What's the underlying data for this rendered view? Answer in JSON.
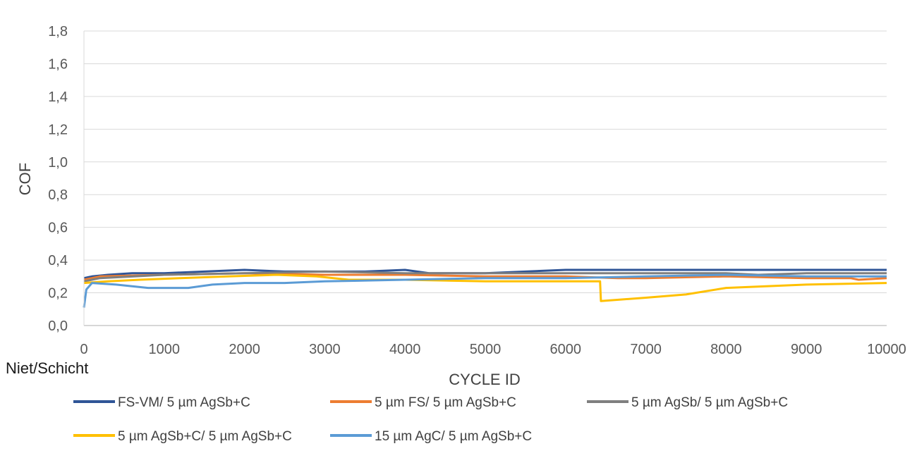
{
  "legend_title": "Niet/Schicht",
  "chart_data": {
    "type": "line",
    "title": "",
    "xlabel": "CYCLE ID",
    "ylabel": "COF",
    "xlim": [
      0,
      10000
    ],
    "ylim": [
      0,
      1.8
    ],
    "x_ticks": [
      "0",
      "1000",
      "2000",
      "3000",
      "4000",
      "5000",
      "6000",
      "7000",
      "8000",
      "9000",
      "10000"
    ],
    "y_ticks": [
      "0,0",
      "0,2",
      "0,4",
      "0,6",
      "0,8",
      "1,0",
      "1,2",
      "1,4",
      "1,6",
      "1,8"
    ],
    "grid": "horizontal",
    "legend_position": "bottom",
    "series": [
      {
        "name": "FS-VM/ 5 µm AgSb+C",
        "color": "#2F5597",
        "x": [
          0,
          100,
          300,
          600,
          1000,
          1500,
          2000,
          2500,
          3000,
          3500,
          4000,
          4300,
          5000,
          6000,
          7000,
          8000,
          9000,
          10000
        ],
        "y": [
          0.29,
          0.3,
          0.31,
          0.32,
          0.32,
          0.33,
          0.34,
          0.33,
          0.33,
          0.33,
          0.34,
          0.32,
          0.32,
          0.34,
          0.34,
          0.34,
          0.34,
          0.34
        ]
      },
      {
        "name": "5 µm FS/ 5 µm AgSb+C",
        "color": "#ED7D31",
        "x": [
          0,
          200,
          1000,
          2000,
          3000,
          4000,
          5000,
          6000,
          6650,
          7000,
          8000,
          9000,
          9550,
          9650,
          10000
        ],
        "y": [
          0.28,
          0.3,
          0.31,
          0.32,
          0.31,
          0.31,
          0.3,
          0.3,
          0.29,
          0.29,
          0.3,
          0.29,
          0.29,
          0.28,
          0.29
        ]
      },
      {
        "name": "5 µm AgSb/ 5 µm AgSb+C",
        "color": "#7F7F7F",
        "x": [
          0,
          200,
          1000,
          2000,
          3000,
          4000,
          5000,
          6000,
          7000,
          8000,
          8400,
          9000,
          10000
        ],
        "y": [
          0.27,
          0.29,
          0.31,
          0.32,
          0.33,
          0.32,
          0.32,
          0.32,
          0.32,
          0.32,
          0.31,
          0.32,
          0.32
        ]
      },
      {
        "name": "5 µm AgSb+C/ 5 µm AgSb+C",
        "color": "#FFC000",
        "x": [
          0,
          300,
          700,
          1200,
          1800,
          2400,
          2900,
          3300,
          4000,
          5000,
          6000,
          6430,
          6440,
          7000,
          7500,
          8000,
          8500,
          9000,
          10000
        ],
        "y": [
          0.26,
          0.27,
          0.28,
          0.29,
          0.3,
          0.31,
          0.3,
          0.28,
          0.28,
          0.27,
          0.27,
          0.27,
          0.15,
          0.17,
          0.19,
          0.23,
          0.24,
          0.25,
          0.26
        ]
      },
      {
        "name": "15 µm AgC/ 5 µm AgSb+C",
        "color": "#5B9BD5",
        "x": [
          0,
          30,
          100,
          400,
          800,
          1300,
          1600,
          2000,
          2500,
          3000,
          4000,
          5000,
          6000,
          7000,
          8000,
          9000,
          10000
        ],
        "y": [
          0.11,
          0.22,
          0.26,
          0.25,
          0.23,
          0.23,
          0.25,
          0.26,
          0.26,
          0.27,
          0.28,
          0.29,
          0.29,
          0.3,
          0.31,
          0.3,
          0.3
        ]
      }
    ]
  }
}
